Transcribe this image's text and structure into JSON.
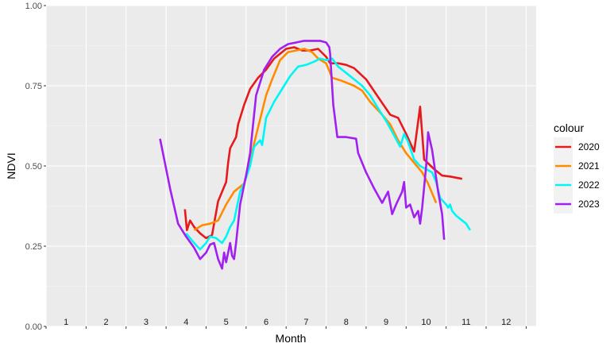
{
  "chart_data": {
    "type": "line",
    "xlabel": "Month",
    "ylabel": "NDVI",
    "xlim": [
      0.5,
      12.75
    ],
    "ylim": [
      0,
      1
    ],
    "y_ticks": [
      {
        "value": 0,
        "label": "0.00"
      },
      {
        "value": 0.25,
        "label": "0.25"
      },
      {
        "value": 0.5,
        "label": "0.50"
      },
      {
        "value": 0.75,
        "label": "0.75"
      },
      {
        "value": 1,
        "label": "1.00"
      }
    ],
    "month_labels": [
      "1",
      "2",
      "3",
      "4",
      "5",
      "6",
      "7",
      "8",
      "9",
      "10",
      "11",
      "12"
    ],
    "grid": true,
    "legend": {
      "title": "colour",
      "position": "right"
    },
    "series": [
      {
        "name": "2020",
        "color": "#e8191a",
        "points": [
          [
            3.97,
            0.365
          ],
          [
            4.02,
            0.3
          ],
          [
            4.1,
            0.33
          ],
          [
            4.2,
            0.31
          ],
          [
            4.35,
            0.29
          ],
          [
            4.5,
            0.275
          ],
          [
            4.65,
            0.285
          ],
          [
            4.7,
            0.32
          ],
          [
            4.8,
            0.39
          ],
          [
            5.0,
            0.45
          ],
          [
            5.05,
            0.51
          ],
          [
            5.1,
            0.555
          ],
          [
            5.25,
            0.59
          ],
          [
            5.3,
            0.63
          ],
          [
            5.45,
            0.69
          ],
          [
            5.6,
            0.74
          ],
          [
            5.8,
            0.775
          ],
          [
            6.0,
            0.8
          ],
          [
            6.2,
            0.835
          ],
          [
            6.5,
            0.865
          ],
          [
            6.7,
            0.87
          ],
          [
            6.9,
            0.86
          ],
          [
            7.1,
            0.86
          ],
          [
            7.3,
            0.865
          ],
          [
            7.5,
            0.84
          ],
          [
            7.6,
            0.82
          ],
          [
            7.8,
            0.82
          ],
          [
            8.0,
            0.815
          ],
          [
            8.2,
            0.805
          ],
          [
            8.5,
            0.77
          ],
          [
            8.8,
            0.715
          ],
          [
            9.1,
            0.66
          ],
          [
            9.3,
            0.65
          ],
          [
            9.5,
            0.6
          ],
          [
            9.7,
            0.545
          ],
          [
            9.85,
            0.685
          ],
          [
            9.95,
            0.52
          ],
          [
            10.2,
            0.49
          ],
          [
            10.4,
            0.47
          ],
          [
            10.6,
            0.467
          ],
          [
            10.9,
            0.46
          ]
        ]
      },
      {
        "name": "2021",
        "color": "#ff8c00",
        "points": [
          [
            4.2,
            0.3
          ],
          [
            4.4,
            0.315
          ],
          [
            4.6,
            0.32
          ],
          [
            4.8,
            0.33
          ],
          [
            5.0,
            0.38
          ],
          [
            5.2,
            0.42
          ],
          [
            5.45,
            0.445
          ],
          [
            5.6,
            0.52
          ],
          [
            5.8,
            0.62
          ],
          [
            6.0,
            0.72
          ],
          [
            6.15,
            0.77
          ],
          [
            6.35,
            0.83
          ],
          [
            6.55,
            0.855
          ],
          [
            6.75,
            0.86
          ],
          [
            6.95,
            0.865
          ],
          [
            7.15,
            0.855
          ],
          [
            7.3,
            0.835
          ],
          [
            7.5,
            0.82
          ],
          [
            7.65,
            0.775
          ],
          [
            7.9,
            0.765
          ],
          [
            8.2,
            0.75
          ],
          [
            8.4,
            0.735
          ],
          [
            8.6,
            0.7
          ],
          [
            8.9,
            0.66
          ],
          [
            9.1,
            0.63
          ],
          [
            9.3,
            0.58
          ],
          [
            9.5,
            0.54
          ],
          [
            9.7,
            0.51
          ],
          [
            9.9,
            0.48
          ],
          [
            10.05,
            0.445
          ],
          [
            10.25,
            0.385
          ]
        ]
      },
      {
        "name": "2022",
        "color": "#00f5f5",
        "points": [
          [
            4.0,
            0.29
          ],
          [
            4.2,
            0.26
          ],
          [
            4.35,
            0.24
          ],
          [
            4.5,
            0.26
          ],
          [
            4.6,
            0.28
          ],
          [
            4.75,
            0.275
          ],
          [
            4.9,
            0.26
          ],
          [
            5.0,
            0.28
          ],
          [
            5.1,
            0.31
          ],
          [
            5.2,
            0.33
          ],
          [
            5.35,
            0.42
          ],
          [
            5.45,
            0.445
          ],
          [
            5.6,
            0.5
          ],
          [
            5.7,
            0.56
          ],
          [
            5.85,
            0.58
          ],
          [
            5.9,
            0.565
          ],
          [
            6.0,
            0.65
          ],
          [
            6.2,
            0.7
          ],
          [
            6.4,
            0.74
          ],
          [
            6.6,
            0.78
          ],
          [
            6.8,
            0.81
          ],
          [
            7.0,
            0.815
          ],
          [
            7.2,
            0.825
          ],
          [
            7.35,
            0.835
          ],
          [
            7.5,
            0.83
          ],
          [
            7.65,
            0.835
          ],
          [
            7.8,
            0.81
          ],
          [
            8.0,
            0.79
          ],
          [
            8.2,
            0.77
          ],
          [
            8.4,
            0.75
          ],
          [
            8.6,
            0.72
          ],
          [
            8.8,
            0.68
          ],
          [
            9.0,
            0.64
          ],
          [
            9.2,
            0.595
          ],
          [
            9.35,
            0.56
          ],
          [
            9.45,
            0.6
          ],
          [
            9.55,
            0.575
          ],
          [
            9.7,
            0.52
          ],
          [
            9.85,
            0.5
          ],
          [
            10.0,
            0.49
          ],
          [
            10.15,
            0.48
          ],
          [
            10.25,
            0.45
          ],
          [
            10.35,
            0.4
          ],
          [
            10.5,
            0.38
          ],
          [
            10.55,
            0.37
          ],
          [
            10.6,
            0.38
          ],
          [
            10.65,
            0.36
          ],
          [
            10.75,
            0.345
          ],
          [
            11.0,
            0.32
          ],
          [
            11.1,
            0.3
          ]
        ]
      },
      {
        "name": "2023",
        "color": "#a020f0",
        "points": [
          [
            3.35,
            0.585
          ],
          [
            3.6,
            0.43
          ],
          [
            3.8,
            0.32
          ],
          [
            4.0,
            0.28
          ],
          [
            4.2,
            0.245
          ],
          [
            4.35,
            0.21
          ],
          [
            4.5,
            0.23
          ],
          [
            4.6,
            0.255
          ],
          [
            4.7,
            0.26
          ],
          [
            4.8,
            0.21
          ],
          [
            4.9,
            0.18
          ],
          [
            4.95,
            0.23
          ],
          [
            5.0,
            0.2
          ],
          [
            5.1,
            0.26
          ],
          [
            5.15,
            0.22
          ],
          [
            5.2,
            0.21
          ],
          [
            5.25,
            0.26
          ],
          [
            5.35,
            0.38
          ],
          [
            5.5,
            0.47
          ],
          [
            5.6,
            0.54
          ],
          [
            5.75,
            0.72
          ],
          [
            5.95,
            0.8
          ],
          [
            6.15,
            0.84
          ],
          [
            6.35,
            0.865
          ],
          [
            6.55,
            0.88
          ],
          [
            6.75,
            0.885
          ],
          [
            6.95,
            0.89
          ],
          [
            7.15,
            0.89
          ],
          [
            7.35,
            0.89
          ],
          [
            7.5,
            0.885
          ],
          [
            7.58,
            0.87
          ],
          [
            7.6,
            0.85
          ],
          [
            7.68,
            0.69
          ],
          [
            7.78,
            0.59
          ],
          [
            8.0,
            0.59
          ],
          [
            8.25,
            0.585
          ],
          [
            8.3,
            0.54
          ],
          [
            8.5,
            0.48
          ],
          [
            8.7,
            0.43
          ],
          [
            8.9,
            0.385
          ],
          [
            9.05,
            0.42
          ],
          [
            9.15,
            0.35
          ],
          [
            9.25,
            0.38
          ],
          [
            9.4,
            0.42
          ],
          [
            9.45,
            0.45
          ],
          [
            9.5,
            0.37
          ],
          [
            9.6,
            0.38
          ],
          [
            9.7,
            0.34
          ],
          [
            9.8,
            0.36
          ],
          [
            9.85,
            0.32
          ],
          [
            9.9,
            0.37
          ],
          [
            10.0,
            0.5
          ],
          [
            10.05,
            0.605
          ],
          [
            10.15,
            0.55
          ],
          [
            10.3,
            0.42
          ],
          [
            10.4,
            0.35
          ],
          [
            10.45,
            0.27
          ]
        ]
      }
    ]
  }
}
